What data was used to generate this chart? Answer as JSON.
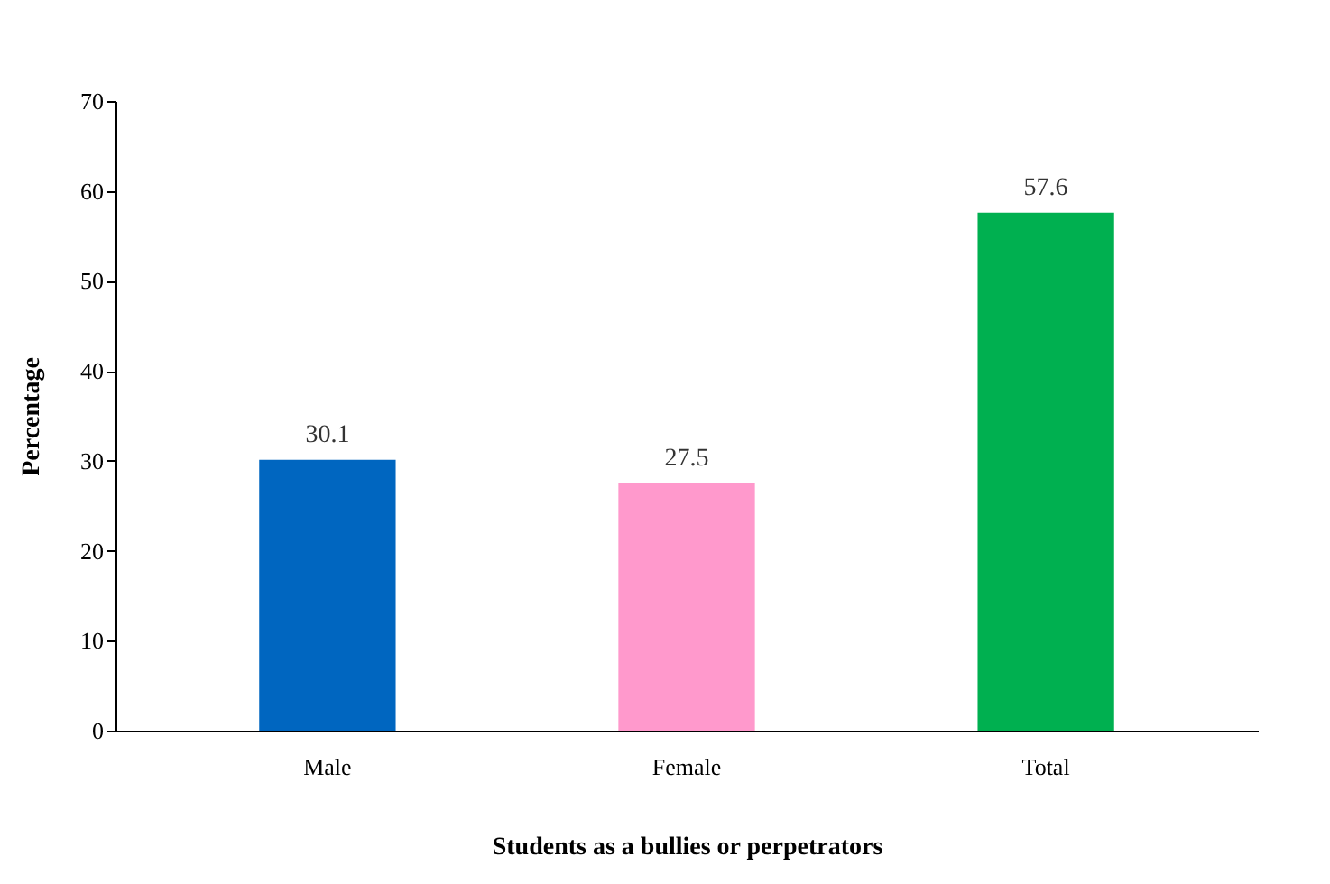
{
  "chart_data": {
    "type": "bar",
    "xlabel": "Students as a bullies or perpetrators",
    "ylabel": "Percentage",
    "categories": [
      "Male",
      "Female",
      "Total"
    ],
    "values": [
      30.1,
      27.5,
      57.6
    ],
    "colors": [
      "#0066c0",
      "#ff99cc",
      "#00b050"
    ],
    "ylim": [
      0,
      70
    ],
    "yticks": [
      0,
      10,
      20,
      30,
      40,
      50,
      60,
      70
    ],
    "grid": false,
    "data_labels": true
  }
}
